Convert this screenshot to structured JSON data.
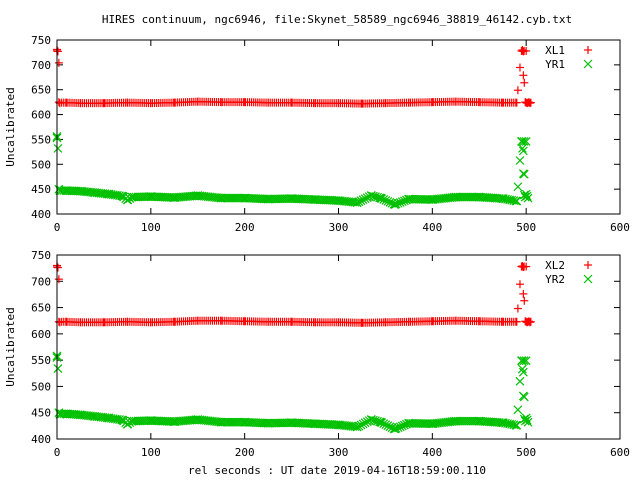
{
  "title": "HIRES continuum, ngc6946, file:Skynet_58589_ngc6946_38819_46142.cyb.txt",
  "xlabel": "rel seconds : UT date 2019-04-16T18:59:00.110",
  "colors": {
    "red": "#ff0000",
    "green": "#00c000"
  },
  "chart_data": [
    {
      "type": "scatter",
      "title": "",
      "xlabel": "",
      "ylabel": "Uncalibrated",
      "xlim": [
        0,
        600
      ],
      "ylim": [
        400,
        750
      ],
      "xticks": [
        0,
        100,
        200,
        300,
        400,
        500,
        600
      ],
      "yticks": [
        400,
        450,
        500,
        550,
        600,
        650,
        700,
        750
      ],
      "legend": "top-right",
      "series": [
        {
          "name": "XL1",
          "marker": "plus",
          "color": "#ff0000",
          "x": [
            0,
            0,
            1,
            2,
            2,
            3,
            495,
            496,
            497,
            497,
            498,
            499,
            500,
            501,
            502,
            503,
            504,
            505,
            10,
            25,
            50,
            75,
            100,
            125,
            150,
            175,
            200,
            225,
            250,
            275,
            300,
            325,
            350,
            375,
            400,
            425,
            450,
            475,
            490
          ],
          "y": [
            728,
            731,
            727,
            704,
            625,
            623,
            728,
            730,
            727,
            679,
            664,
            625,
            624,
            623,
            624,
            625,
            623,
            624,
            624,
            623,
            623,
            624,
            623,
            624,
            626,
            625,
            625,
            624,
            624,
            623,
            623,
            622,
            623,
            624,
            625,
            626,
            625,
            624,
            624
          ]
        },
        {
          "name": "YR1",
          "marker": "cross",
          "color": "#00c000",
          "x": [
            0,
            0,
            1,
            2,
            3,
            495,
            496,
            497,
            497,
            498,
            498,
            499,
            500,
            501,
            502,
            10,
            25,
            40,
            55,
            70,
            75,
            80,
            100,
            125,
            150,
            175,
            200,
            225,
            250,
            275,
            300,
            320,
            335,
            345,
            360,
            375,
            400,
            425,
            450,
            475,
            490
          ],
          "y": [
            556,
            553,
            532,
            450,
            447,
            546,
            532,
            527,
            481,
            480,
            438,
            434,
            440,
            436,
            432,
            447,
            446,
            443,
            440,
            436,
            428,
            434,
            435,
            433,
            437,
            432,
            432,
            430,
            431,
            429,
            427,
            423,
            437,
            432,
            419,
            430,
            429,
            434,
            434,
            431,
            426
          ]
        }
      ]
    },
    {
      "type": "scatter",
      "title": "",
      "xlabel": "rel seconds : UT date 2019-04-16T18:59:00.110",
      "ylabel": "Uncalibrated",
      "xlim": [
        0,
        600
      ],
      "ylim": [
        400,
        750
      ],
      "xticks": [
        0,
        100,
        200,
        300,
        400,
        500,
        600
      ],
      "yticks": [
        400,
        450,
        500,
        550,
        600,
        650,
        700,
        750
      ],
      "legend": "top-right",
      "series": [
        {
          "name": "XL2",
          "marker": "plus",
          "color": "#ff0000",
          "x": [
            0,
            0,
            1,
            2,
            2,
            3,
            495,
            496,
            497,
            497,
            498,
            499,
            500,
            501,
            502,
            503,
            504,
            505,
            10,
            25,
            50,
            75,
            100,
            125,
            150,
            175,
            200,
            225,
            250,
            275,
            300,
            325,
            350,
            375,
            400,
            425,
            450,
            475,
            490
          ],
          "y": [
            727,
            730,
            726,
            704,
            623,
            622,
            728,
            729,
            727,
            676,
            663,
            624,
            623,
            622,
            623,
            624,
            622,
            623,
            623,
            622,
            622,
            623,
            622,
            623,
            625,
            625,
            624,
            623,
            623,
            622,
            622,
            621,
            622,
            623,
            624,
            625,
            624,
            623,
            623
          ]
        },
        {
          "name": "YR2",
          "marker": "cross",
          "color": "#00c000",
          "x": [
            0,
            0,
            1,
            2,
            3,
            495,
            496,
            497,
            497,
            498,
            498,
            499,
            500,
            501,
            502,
            10,
            25,
            40,
            55,
            70,
            75,
            80,
            100,
            125,
            150,
            175,
            200,
            225,
            250,
            275,
            300,
            320,
            335,
            345,
            360,
            375,
            400,
            425,
            450,
            475,
            490
          ],
          "y": [
            558,
            555,
            534,
            450,
            447,
            549,
            533,
            527,
            482,
            480,
            438,
            434,
            440,
            436,
            432,
            448,
            446,
            443,
            440,
            436,
            428,
            434,
            435,
            433,
            437,
            432,
            432,
            430,
            431,
            429,
            427,
            423,
            437,
            432,
            419,
            430,
            429,
            434,
            434,
            431,
            426
          ]
        }
      ]
    }
  ]
}
